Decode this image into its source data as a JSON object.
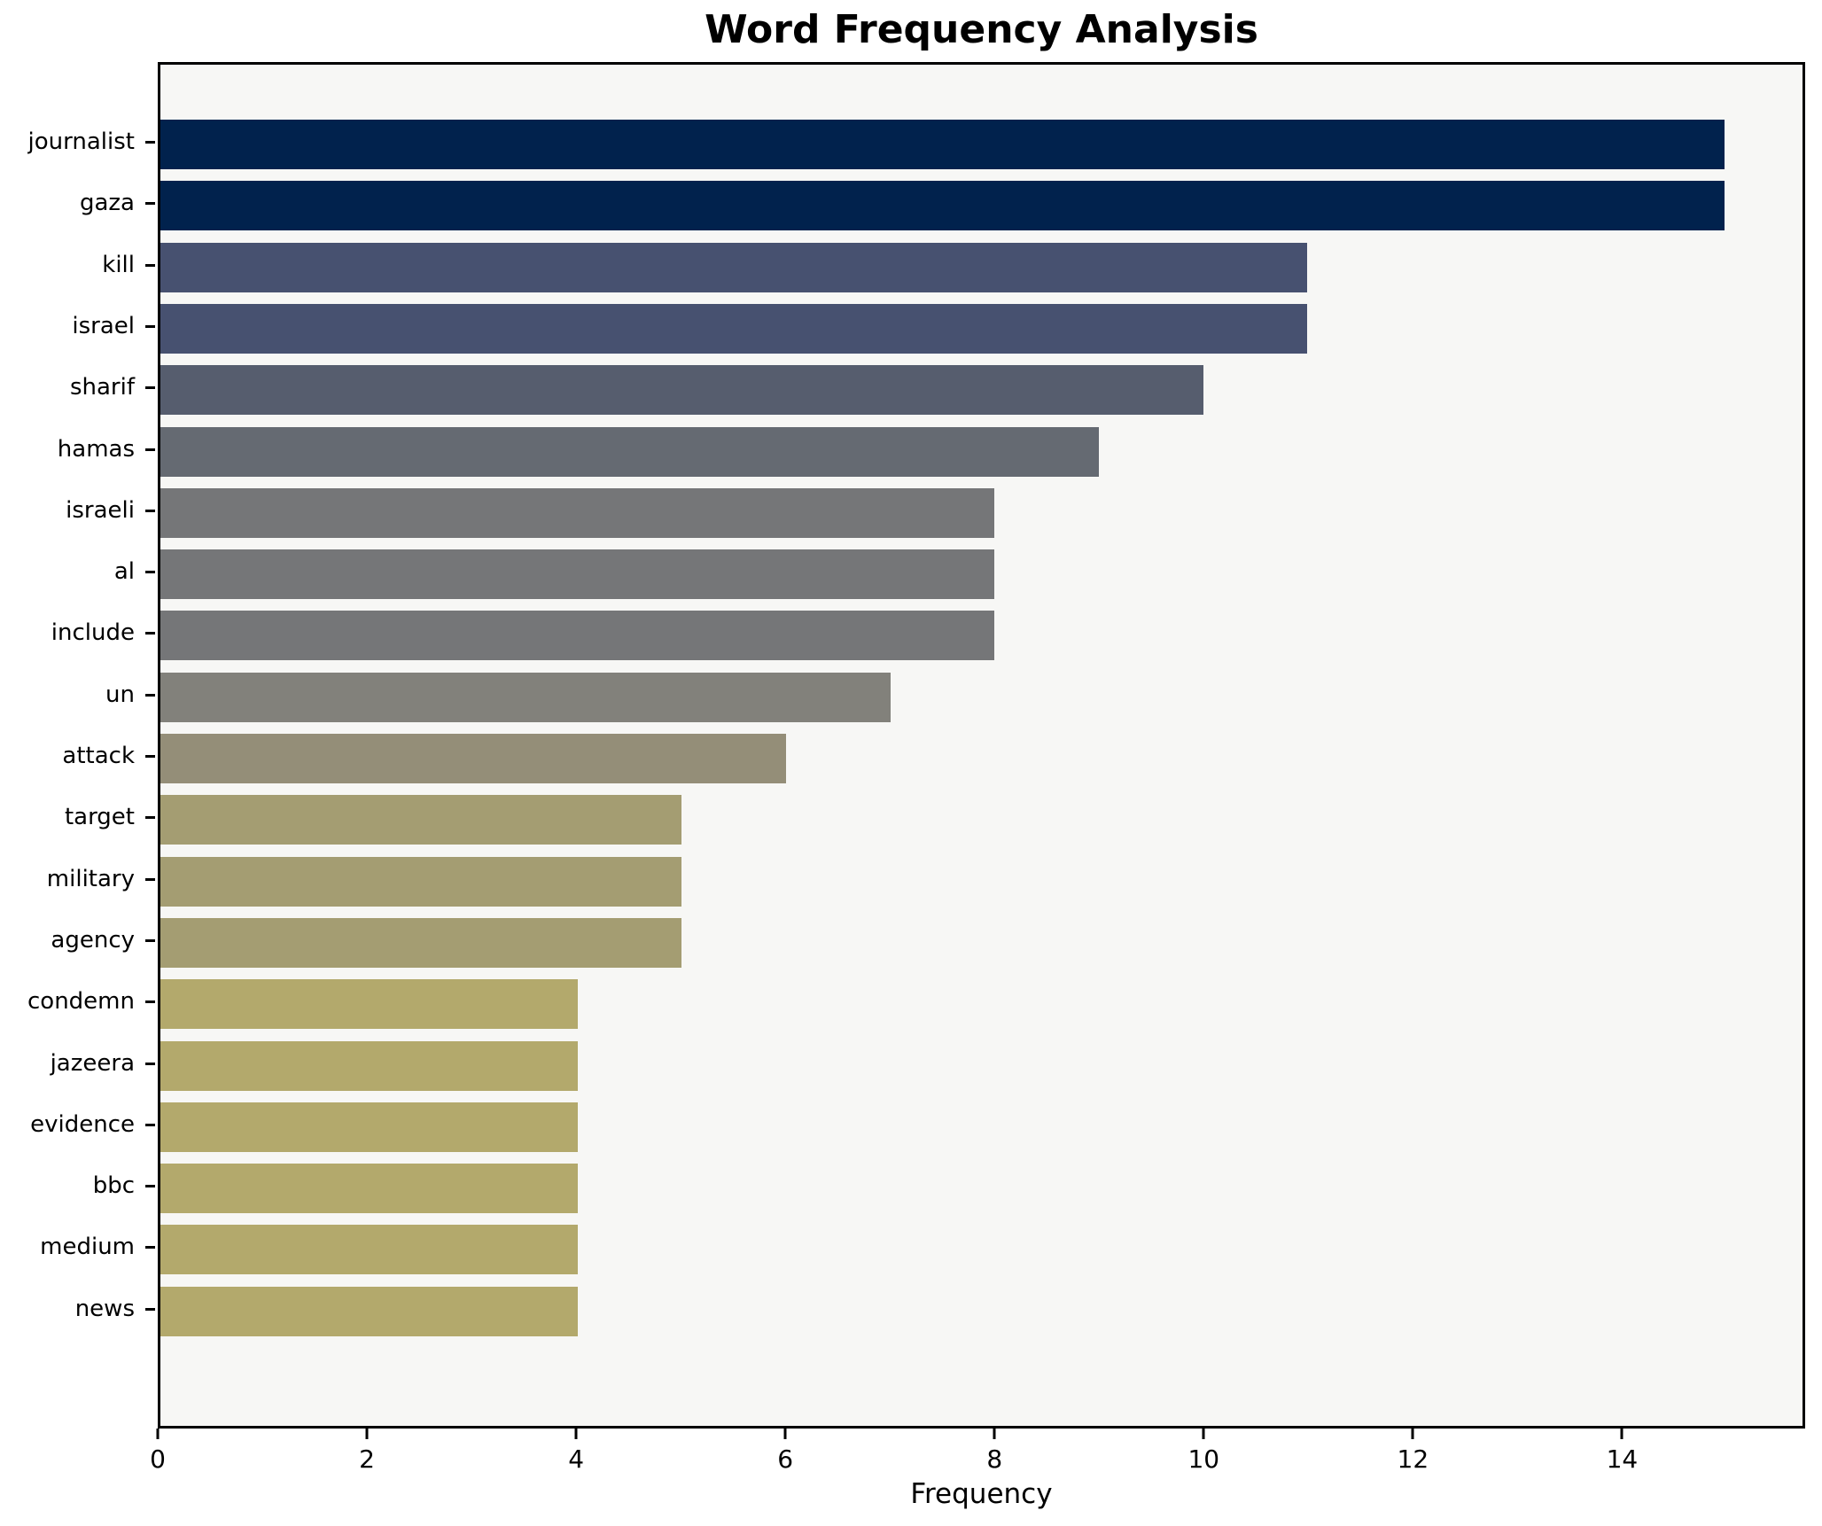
{
  "chart_data": {
    "type": "bar",
    "orientation": "horizontal",
    "title": "Word Frequency Analysis",
    "xlabel": "Frequency",
    "ylabel": "",
    "categories": [
      "journalist",
      "gaza",
      "kill",
      "israel",
      "sharif",
      "hamas",
      "israeli",
      "al",
      "include",
      "un",
      "attack",
      "target",
      "military",
      "agency",
      "condemn",
      "jazeera",
      "evidence",
      "bbc",
      "medium",
      "news"
    ],
    "values": [
      15,
      15,
      11,
      11,
      10,
      9,
      8,
      8,
      8,
      7,
      6,
      5,
      5,
      5,
      4,
      4,
      4,
      4,
      4,
      4
    ],
    "bar_colors": [
      "#01224d",
      "#01224d",
      "#475170",
      "#475170",
      "#565d6e",
      "#656a72",
      "#757678",
      "#757678",
      "#757678",
      "#82817b",
      "#948e78",
      "#a49d72",
      "#a49d72",
      "#a49d72",
      "#b3a96c",
      "#b3a96c",
      "#b3a96c",
      "#b3a96c",
      "#b3a96c",
      "#b3a96c"
    ],
    "xlim": [
      0,
      15.75
    ],
    "x_ticks": [
      0,
      2,
      4,
      6,
      8,
      10,
      12,
      14
    ],
    "grid": false,
    "legend": null,
    "plot_background": "#f7f7f5",
    "figure_background": "#ffffff",
    "axis_border_color": "#000000"
  }
}
